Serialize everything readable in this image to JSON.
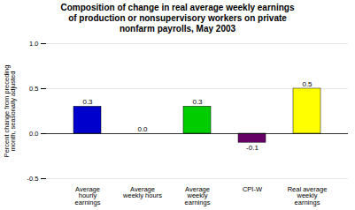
{
  "chart_data": {
    "type": "bar",
    "title": "Composition of change in real average weekly earnings\nof production or nonsupervisory workers on private\nnonfarm payrolls, May 2003",
    "categories": [
      "Average\nhourly\nearnings",
      "Average\nweekly hours",
      "Average\nweekly\nearnings",
      "CPI-W",
      "Real average\nweekly\nearnings"
    ],
    "values": [
      0.3,
      0.0,
      0.3,
      -0.1,
      0.5
    ],
    "value_labels": [
      "0.3",
      "0.0",
      "0.3",
      "-0.1",
      "0.5"
    ],
    "colors": [
      "#0000cc",
      "#cccccc",
      "#00cc00",
      "#660066",
      "#ffff00"
    ],
    "ylabel": "Percent change from preceding\nmonth, seasonally adjusted",
    "ylim": [
      -0.5,
      1.0
    ],
    "yticks": [
      -0.5,
      {
        "value": 0.0,
        "label": "0.0"
      },
      0.5,
      {
        "value": 1.0,
        "label": "1.0"
      }
    ],
    "data_labels": true,
    "grid": true
  }
}
